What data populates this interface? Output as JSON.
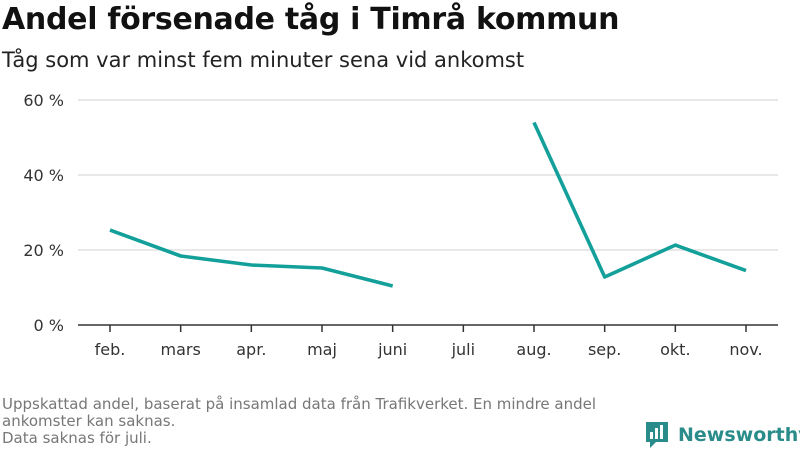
{
  "title": "Andel försenade tåg i Timrå kommun",
  "subtitle": "Tåg som var minst fem minuter sena vid ankomst",
  "footnote": {
    "line1": "Uppskattad andel, baserat på insamlad data från Trafikverket. En mindre andel ankomster kan saknas.",
    "line2": "Data saknas för juli."
  },
  "brand": {
    "name": "Newsworthy",
    "color": "#2a8c8a"
  },
  "chart_data": {
    "type": "line",
    "categories": [
      "feb.",
      "mars",
      "apr.",
      "maj",
      "juni",
      "juli",
      "aug.",
      "sep.",
      "okt.",
      "nov."
    ],
    "series": [
      {
        "values": [
          25.3,
          18.4,
          16.0,
          15.2,
          10.4,
          null,
          54.0,
          12.8,
          21.3,
          14.5
        ],
        "color": "#14a09a"
      }
    ],
    "y_ticks": [
      "0 %",
      "20 %",
      "40 %",
      "60 %"
    ],
    "y_tick_values": [
      0,
      20,
      40,
      60
    ],
    "ylim": [
      0,
      60
    ],
    "grid": true,
    "xlabel": "",
    "ylabel": ""
  }
}
